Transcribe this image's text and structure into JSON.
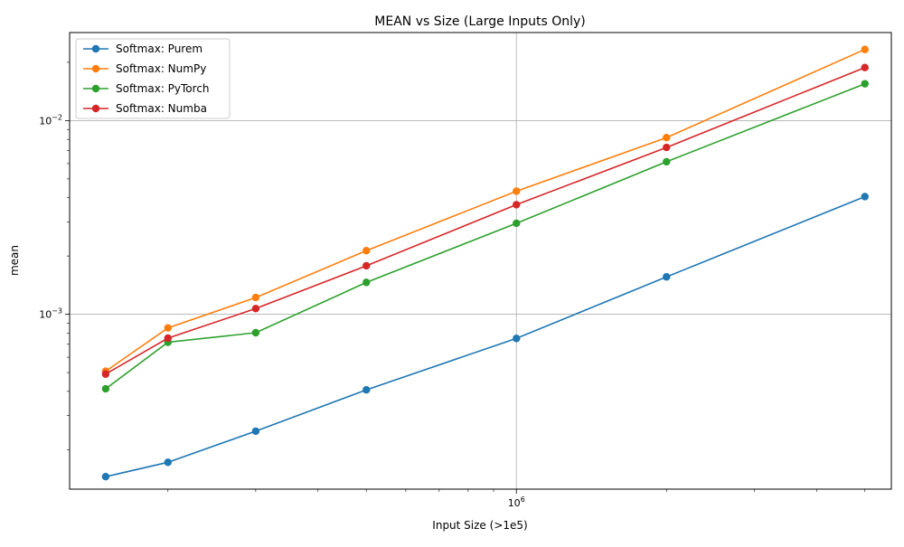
{
  "chart_data": {
    "type": "line",
    "title": "MEAN vs Size (Large Inputs Only)",
    "xlabel": "Input Size (>1e5)",
    "ylabel": "mean",
    "x_scale": "log",
    "y_scale": "log",
    "xlim": [
      127000,
      5650000
    ],
    "ylim": [
      0.000125,
      0.0285
    ],
    "x_major_ticks": [
      {
        "value": 1000000,
        "base": "10",
        "exp": "6"
      }
    ],
    "x_minor_ticks": [
      200000,
      300000,
      400000,
      500000,
      600000,
      700000,
      800000,
      900000,
      2000000,
      3000000,
      4000000,
      5000000
    ],
    "y_major_ticks": [
      {
        "value": 0.001,
        "base": "10",
        "exp": "−3"
      },
      {
        "value": 0.01,
        "base": "10",
        "exp": "−2"
      }
    ],
    "y_minor_ticks": [
      0.0002,
      0.0003,
      0.0004,
      0.0005,
      0.0006,
      0.0007,
      0.0008,
      0.0009,
      0.002,
      0.003,
      0.004,
      0.005,
      0.006,
      0.007,
      0.008,
      0.009,
      0.02
    ],
    "grid": true,
    "legend_position": "top-left",
    "x": [
      150000,
      200000,
      300000,
      500000,
      1000000,
      2000000,
      5000000
    ],
    "series": [
      {
        "name": "Softmax: Purem",
        "color": "#1f77b4",
        "values": [
          0.000145,
          0.000172,
          0.000249,
          0.000407,
          0.00075,
          0.00156,
          0.00405
        ]
      },
      {
        "name": "Softmax: NumPy",
        "color": "#ff7f0e",
        "values": [
          0.000508,
          0.00085,
          0.00122,
          0.00213,
          0.00432,
          0.00817,
          0.0233
        ]
      },
      {
        "name": "Softmax: PyTorch",
        "color": "#2ca02c",
        "values": [
          0.000412,
          0.000717,
          0.000803,
          0.00146,
          0.00295,
          0.00613,
          0.0155
        ]
      },
      {
        "name": "Softmax: Numba",
        "color": "#d62728",
        "values": [
          0.000491,
          0.000753,
          0.00107,
          0.00178,
          0.00368,
          0.00727,
          0.0188
        ]
      }
    ]
  }
}
